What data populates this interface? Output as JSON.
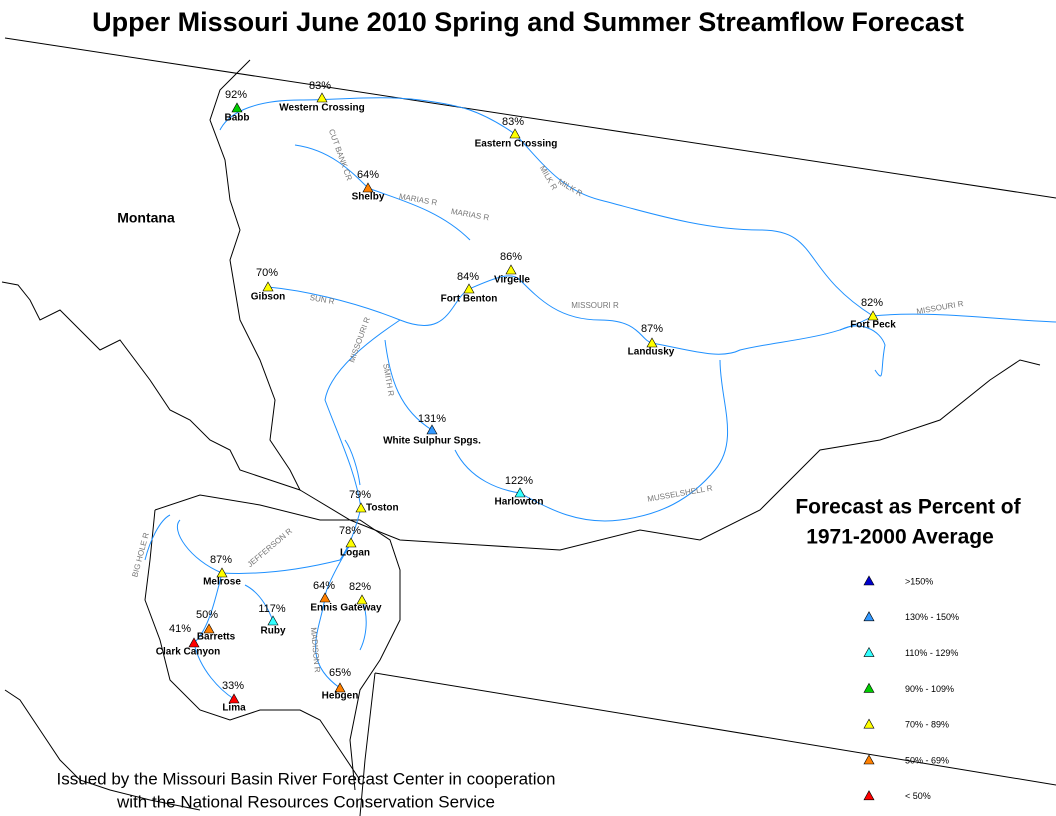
{
  "title": "Upper Missouri June 2010 Spring and Summer Streamflow Forecast",
  "state_label": "Montana",
  "stations": [
    {
      "name": "Babb",
      "percent": "92%"
    },
    {
      "name": "Western Crossing",
      "percent": "83%"
    },
    {
      "name": "Eastern Crossing",
      "percent": "83%"
    },
    {
      "name": "Shelby",
      "percent": "64%"
    },
    {
      "name": "Virgelle",
      "percent": "86%"
    },
    {
      "name": "Fort Benton",
      "percent": "84%"
    },
    {
      "name": "Gibson",
      "percent": "70%"
    },
    {
      "name": "Landusky",
      "percent": "87%"
    },
    {
      "name": "Fort Peck",
      "percent": "82%"
    },
    {
      "name": "White Sulphur Spgs.",
      "percent": "131%"
    },
    {
      "name": "Harlowton",
      "percent": "122%"
    },
    {
      "name": "Toston",
      "percent": "79%"
    },
    {
      "name": "Logan",
      "percent": "78%"
    },
    {
      "name": "Melrose",
      "percent": "87%"
    },
    {
      "name": "Ennis",
      "percent": "64%"
    },
    {
      "name": "Gateway",
      "percent": "82%"
    },
    {
      "name": "Ruby",
      "percent": "117%"
    },
    {
      "name": "Barretts",
      "percent": "50%"
    },
    {
      "name": "Clark Canyon",
      "percent": "41%"
    },
    {
      "name": "Lima",
      "percent": "33%"
    },
    {
      "name": "Hebgen",
      "percent": "65%"
    }
  ],
  "river_labels": [
    "CUT BANK CR",
    "MARIAS R",
    "MARIAS R",
    "MILK R",
    "MILK R",
    "SUN R",
    "MISSOURI R",
    "MISSOURI R",
    "MISSOURI R",
    "SMITH R",
    "MUSSELSHELL R",
    "JEFFERSON R",
    "BIG HOLE R",
    "MADISON R"
  ],
  "legend": {
    "title": [
      "Forecast as Percent of",
      "1971-2000 Average"
    ],
    "items": [
      {
        "label": ">150%",
        "color": "#0000cc"
      },
      {
        "label": "130% - 150%",
        "color": "#3399ff"
      },
      {
        "label": "110% - 129%",
        "color": "#33ffff"
      },
      {
        "label": "90% - 109%",
        "color": "#00cc00"
      },
      {
        "label": "70% - 89%",
        "color": "#ffff00"
      },
      {
        "label": "50% - 69%",
        "color": "#ff8000"
      },
      {
        "label": "< 50%",
        "color": "#ff0000"
      }
    ]
  },
  "footer": [
    "Issued by the Missouri Basin River Forecast Center in cooperation",
    "with the National Resources Conservation Service"
  ]
}
